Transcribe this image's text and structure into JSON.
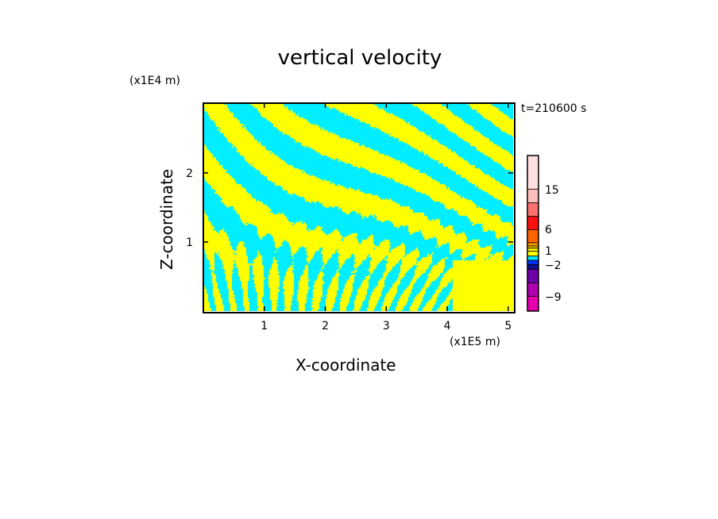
{
  "chart_data": {
    "type": "heatmap",
    "title": "vertical velocity",
    "xlabel": "X-coordinate",
    "ylabel": "Z-coordinate",
    "x_unit": "(x1E5 m)",
    "y_unit": "(x1E4 m)",
    "time_label": "t=210600 s",
    "xlim": [
      0,
      5.08
    ],
    "ylim": [
      0,
      3.01
    ],
    "x_ticks": [
      "1",
      "2",
      "3",
      "4",
      "5"
    ],
    "x_tick_values": [
      1,
      2,
      3,
      4,
      5
    ],
    "y_ticks": [
      "1",
      "2"
    ],
    "y_tick_values": [
      1,
      2
    ],
    "colorbar": {
      "tick_labels": [
        "15",
        "6",
        "1",
        "-2",
        "-9"
      ],
      "segments_top_to_bottom": [
        {
          "color": "#ffe0e0",
          "weight": 127
        },
        {
          "color": "#ffbcbc",
          "weight": 52
        },
        {
          "color": "#ff7070",
          "weight": 51
        },
        {
          "color": "#ff1010",
          "weight": 50
        },
        {
          "color": "#ff6400",
          "weight": 50
        },
        {
          "color": "#ff9a00",
          "weight": 12
        },
        {
          "color": "#ffd000",
          "weight": 8
        },
        {
          "color": "#ffee00",
          "weight": 12
        },
        {
          "color": "#ffff00",
          "weight": 18
        },
        {
          "color": "#00e8ff",
          "weight": 16
        },
        {
          "color": "#0030ff",
          "weight": 16
        },
        {
          "color": "#101090",
          "weight": 18
        },
        {
          "color": "#7000a8",
          "weight": 52
        },
        {
          "color": "#b000b0",
          "weight": 50
        },
        {
          "color": "#e800b0",
          "weight": 56
        }
      ]
    },
    "field_colors": {
      "positive": "#ffff00",
      "negative": "#00eeff"
    }
  }
}
